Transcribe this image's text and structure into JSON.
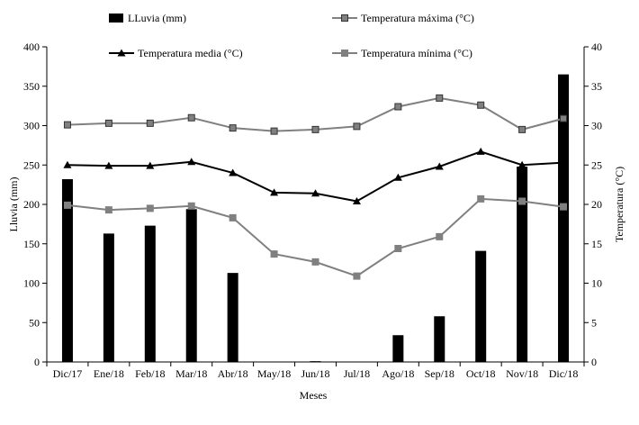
{
  "chart_data": {
    "type": "bar+line",
    "categories": [
      "Dic/17",
      "Ene/18",
      "Feb/18",
      "Mar/18",
      "Abr/18",
      "May/18",
      "Jun/18",
      "Jul/18",
      "Ago/18",
      "Sep/18",
      "Oct/18",
      "Nov/18",
      "Dic/18"
    ],
    "xlabel": "Meses",
    "ylabel_left": "Lluvia (mm)",
    "ylabel_right": "Temperatura (°C)",
    "ylim_left": [
      0,
      400
    ],
    "ylim_right": [
      0,
      40
    ],
    "yticks_left": [
      "0",
      "50",
      "100",
      "150",
      "200",
      "250",
      "300",
      "350",
      "400"
    ],
    "yticks_right": [
      "0",
      "5",
      "10",
      "15",
      "20",
      "25",
      "30",
      "35",
      "40"
    ],
    "series": [
      {
        "name": "LLuvia (mm)",
        "kind": "bar",
        "axis": "left",
        "color": "#000000",
        "values": [
          232,
          163,
          173,
          194,
          113,
          0,
          1,
          0,
          34,
          58,
          141,
          248,
          365
        ]
      },
      {
        "name": "Temperatura máxima (°C)",
        "kind": "line",
        "axis": "right",
        "marker": "square",
        "color": "#808080",
        "marker_fill": "#808080",
        "marker_stroke": "#333333",
        "values": [
          30.1,
          30.3,
          30.3,
          31.0,
          29.7,
          29.3,
          29.5,
          29.9,
          32.4,
          33.5,
          32.6,
          29.5,
          30.9
        ]
      },
      {
        "name": "Temperatura media (°C)",
        "kind": "line",
        "axis": "right",
        "marker": "triangle",
        "color": "#000000",
        "values": [
          25.0,
          24.9,
          24.9,
          25.4,
          24.0,
          21.5,
          21.4,
          20.4,
          23.4,
          24.8,
          26.7,
          25.0,
          25.3
        ]
      },
      {
        "name": "Temperatura mínima (°C)",
        "kind": "line",
        "axis": "right",
        "marker": "square",
        "color": "#808080",
        "marker_fill": "#808080",
        "marker_stroke": "#808080",
        "values": [
          19.9,
          19.3,
          19.5,
          19.8,
          18.3,
          13.7,
          12.7,
          10.9,
          14.4,
          15.9,
          20.7,
          20.4,
          19.7
        ]
      }
    ]
  }
}
